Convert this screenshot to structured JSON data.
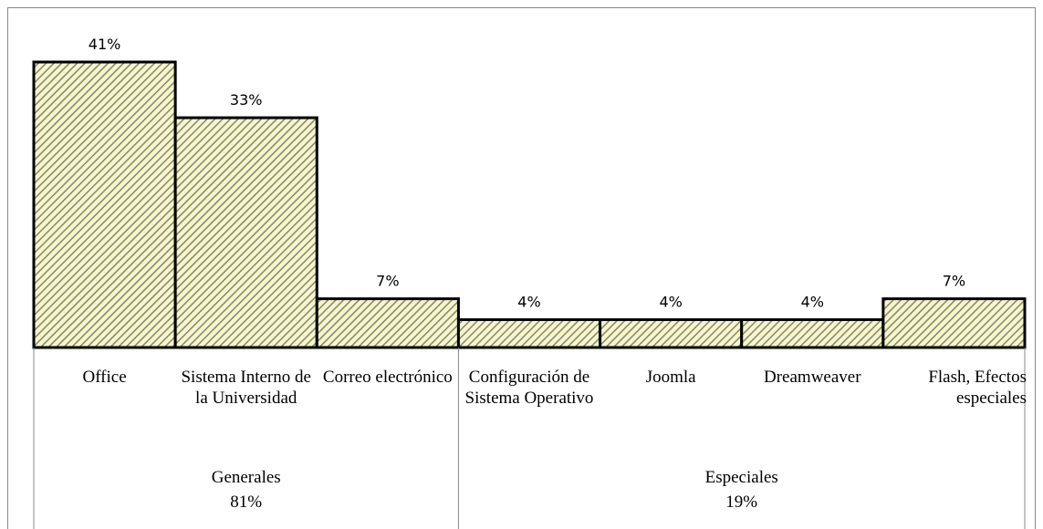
{
  "chart_data": {
    "type": "bar",
    "categories": [
      "Office",
      "Sistema Interno de la Universidad",
      "Correo electrónico",
      "Configuración de Sistema Operativo",
      "Joomla",
      "Dreamweaver",
      "Flash, Efectos especiales"
    ],
    "values": [
      41,
      33,
      7,
      4,
      4,
      4,
      7
    ],
    "value_labels": [
      "41%",
      "33%",
      "7%",
      "4%",
      "4%",
      "4%",
      "7%"
    ],
    "groups": [
      {
        "name": "Generales",
        "value": 81,
        "value_label": "81%",
        "span": 3
      },
      {
        "name": "Especiales",
        "value": 19,
        "value_label": "19%",
        "span": 4
      }
    ],
    "color": "#8c8c3c"
  }
}
